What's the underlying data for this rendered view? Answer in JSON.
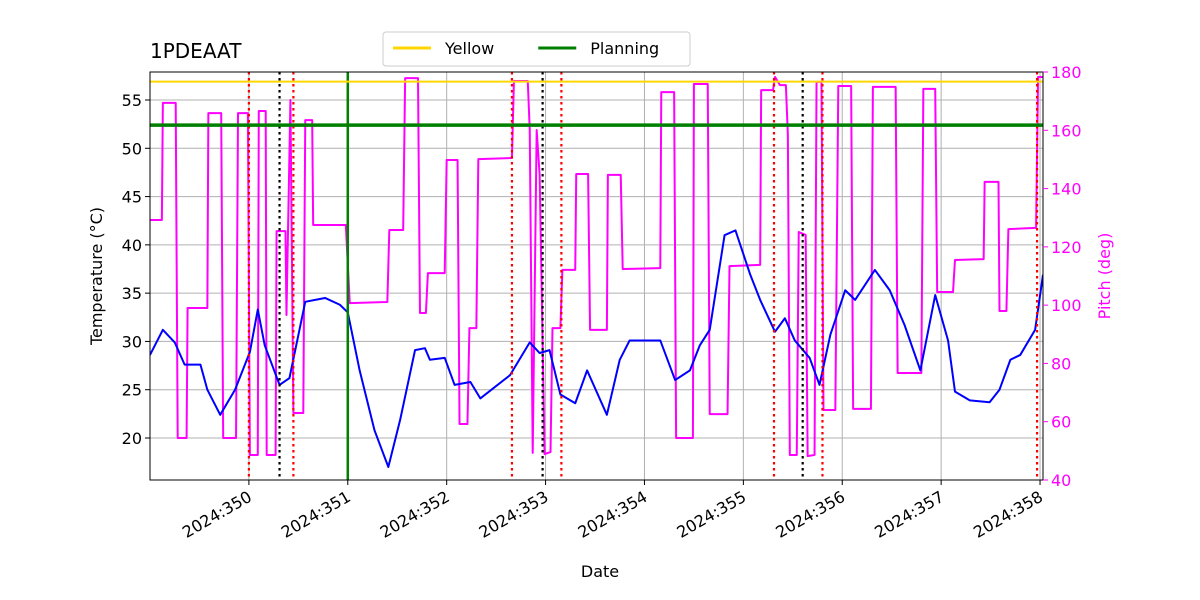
{
  "chart_data": {
    "type": "line",
    "title": "1PDEAAT",
    "xlabel": "Date",
    "ylabel": "Temperature (°C)",
    "y2label": "Pitch (deg)",
    "y2color": "#ff00ff",
    "xlim": [
      349.0,
      358.03
    ],
    "xticks": [
      {
        "value": 350,
        "label": "2024:350"
      },
      {
        "value": 351,
        "label": "2024:351"
      },
      {
        "value": 352,
        "label": "2024:352"
      },
      {
        "value": 353,
        "label": "2024:353"
      },
      {
        "value": 354,
        "label": "2024:354"
      },
      {
        "value": 355,
        "label": "2024:355"
      },
      {
        "value": 356,
        "label": "2024:356"
      },
      {
        "value": 357,
        "label": "2024:357"
      },
      {
        "value": 358,
        "label": "2024:358"
      }
    ],
    "ylim": [
      15.65,
      57.9
    ],
    "yticks": [
      20,
      25,
      30,
      35,
      40,
      45,
      50,
      55
    ],
    "y2lim": [
      40,
      180
    ],
    "y2ticks": [
      40,
      60,
      80,
      100,
      120,
      140,
      160,
      180
    ],
    "grid": true,
    "legend": "top",
    "hlines": [
      {
        "name": "Yellow",
        "color": "#ffd700",
        "value": 56.9
      },
      {
        "name": "Planning",
        "color": "#008000",
        "value": 52.4
      }
    ],
    "vlines": [
      {
        "x": 351.0,
        "color": "#008000",
        "style": "solid"
      },
      {
        "x": 350.0,
        "color": "#ff0000",
        "style": "dotted"
      },
      {
        "x": 350.45,
        "color": "#ff0000",
        "style": "dotted"
      },
      {
        "x": 352.66,
        "color": "#ff0000",
        "style": "dotted"
      },
      {
        "x": 353.16,
        "color": "#ff0000",
        "style": "dotted"
      },
      {
        "x": 355.31,
        "color": "#ff0000",
        "style": "dotted"
      },
      {
        "x": 355.8,
        "color": "#ff0000",
        "style": "dotted"
      },
      {
        "x": 357.97,
        "color": "#ff0000",
        "style": "dotted"
      },
      {
        "x": 350.31,
        "color": "#000000",
        "style": "dotted"
      },
      {
        "x": 352.97,
        "color": "#000000",
        "style": "dotted"
      },
      {
        "x": 355.6,
        "color": "#000000",
        "style": "dotted"
      }
    ],
    "series": [
      {
        "color": "#ff00ff",
        "axis": "y2",
        "x": [
          349.0,
          349.12,
          349.13,
          349.26,
          349.28,
          349.37,
          349.38,
          349.58,
          349.59,
          349.72,
          349.74,
          349.87,
          349.89,
          349.99,
          350.01,
          350.09,
          350.1,
          350.17,
          350.18,
          350.27,
          350.28,
          350.37,
          350.38,
          350.42,
          350.45,
          350.55,
          350.57,
          350.64,
          350.65,
          350.98,
          351.02,
          351.4,
          351.42,
          351.56,
          351.58,
          351.71,
          351.73,
          351.79,
          351.81,
          351.98,
          352.0,
          352.11,
          352.13,
          352.21,
          352.23,
          352.3,
          352.32,
          352.66,
          352.68,
          352.82,
          352.84,
          352.87,
          352.91,
          352.94,
          352.99,
          353.05,
          353.07,
          353.15,
          353.17,
          353.3,
          353.31,
          353.43,
          353.45,
          353.62,
          353.63,
          353.76,
          353.78,
          354.16,
          354.17,
          354.3,
          354.32,
          354.49,
          354.5,
          354.64,
          354.66,
          354.84,
          354.86,
          355.17,
          355.18,
          355.3,
          355.32,
          355.37,
          355.43,
          355.45,
          355.47,
          355.54,
          355.56,
          355.63,
          355.65,
          355.72,
          355.74,
          355.79,
          355.81,
          355.93,
          355.96,
          356.09,
          356.11,
          356.29,
          356.31,
          356.54,
          356.56,
          356.8,
          356.82,
          356.94,
          356.96,
          357.12,
          357.14,
          357.43,
          357.44,
          357.58,
          357.59,
          357.66,
          357.68,
          357.96,
          357.98,
          358.03
        ],
        "values": [
          129.2,
          129.2,
          169.4,
          169.4,
          54.4,
          54.4,
          99.0,
          99.0,
          165.9,
          165.9,
          54.4,
          54.4,
          165.9,
          165.9,
          48.6,
          48.6,
          166.6,
          166.6,
          48.6,
          48.6,
          125.4,
          125.4,
          96.6,
          170.4,
          63.0,
          63.0,
          163.5,
          163.5,
          127.5,
          127.5,
          100.7,
          101.1,
          125.8,
          125.8,
          177.9,
          177.9,
          97.3,
          97.3,
          111.0,
          111.0,
          149.8,
          149.8,
          59.2,
          59.2,
          92.1,
          92.1,
          150.1,
          150.5,
          176.9,
          176.9,
          160.1,
          49.3,
          160.1,
          144.7,
          48.9,
          49.6,
          92.1,
          92.1,
          112.1,
          112.1,
          145.0,
          145.0,
          91.5,
          91.5,
          144.7,
          144.7,
          112.4,
          112.7,
          173.1,
          173.1,
          54.4,
          54.4,
          175.9,
          175.9,
          62.6,
          62.6,
          113.4,
          113.8,
          173.8,
          173.8,
          178.3,
          175.5,
          175.5,
          158.4,
          48.6,
          48.6,
          125.1,
          124.1,
          48.2,
          48.6,
          176.6,
          176.6,
          64.0,
          64.0,
          175.2,
          175.2,
          64.4,
          64.4,
          174.9,
          174.9,
          76.7,
          76.7,
          174.2,
          174.2,
          104.5,
          104.5,
          115.5,
          115.8,
          142.3,
          142.3,
          98.0,
          98.0,
          126.1,
          126.5,
          178.3,
          178.3
        ]
      },
      {
        "color": "#0000ff",
        "x": [
          349.0,
          349.13,
          349.25,
          349.35,
          349.51,
          349.58,
          349.71,
          349.86,
          350.01,
          350.09,
          350.16,
          350.31,
          350.41,
          350.57,
          350.67,
          350.77,
          350.92,
          351.0,
          351.12,
          351.27,
          351.41,
          351.53,
          351.68,
          351.78,
          351.83,
          351.98,
          352.08,
          352.24,
          352.34,
          352.64,
          352.84,
          352.94,
          353.04,
          353.15,
          353.3,
          353.42,
          353.62,
          353.75,
          353.85,
          354.16,
          354.31,
          354.46,
          354.56,
          354.66,
          354.81,
          354.92,
          355.07,
          355.17,
          355.32,
          355.42,
          355.52,
          355.67,
          355.77,
          355.88,
          356.03,
          356.13,
          356.33,
          356.48,
          356.63,
          356.79,
          356.94,
          357.07,
          357.14,
          357.29,
          357.49,
          357.59,
          357.7,
          357.8,
          357.95,
          358.03
        ],
        "values": [
          28.6,
          31.2,
          29.9,
          27.6,
          27.6,
          25.0,
          22.4,
          25.0,
          28.9,
          33.3,
          29.6,
          25.5,
          26.2,
          34.1,
          34.3,
          34.5,
          33.8,
          33.0,
          27.0,
          20.8,
          17.0,
          21.9,
          29.1,
          29.3,
          28.1,
          28.3,
          25.5,
          25.8,
          24.1,
          26.5,
          29.9,
          28.8,
          29.1,
          24.5,
          23.6,
          27.0,
          22.4,
          28.1,
          30.1,
          30.1,
          26.0,
          27.0,
          29.6,
          31.2,
          41.0,
          41.5,
          36.9,
          34.3,
          31.0,
          32.4,
          30.1,
          28.3,
          25.5,
          30.7,
          35.3,
          34.3,
          37.4,
          35.3,
          31.7,
          27.0,
          34.8,
          30.1,
          24.8,
          23.9,
          23.7,
          25.0,
          28.1,
          28.6,
          31.2,
          36.9
        ]
      }
    ]
  }
}
